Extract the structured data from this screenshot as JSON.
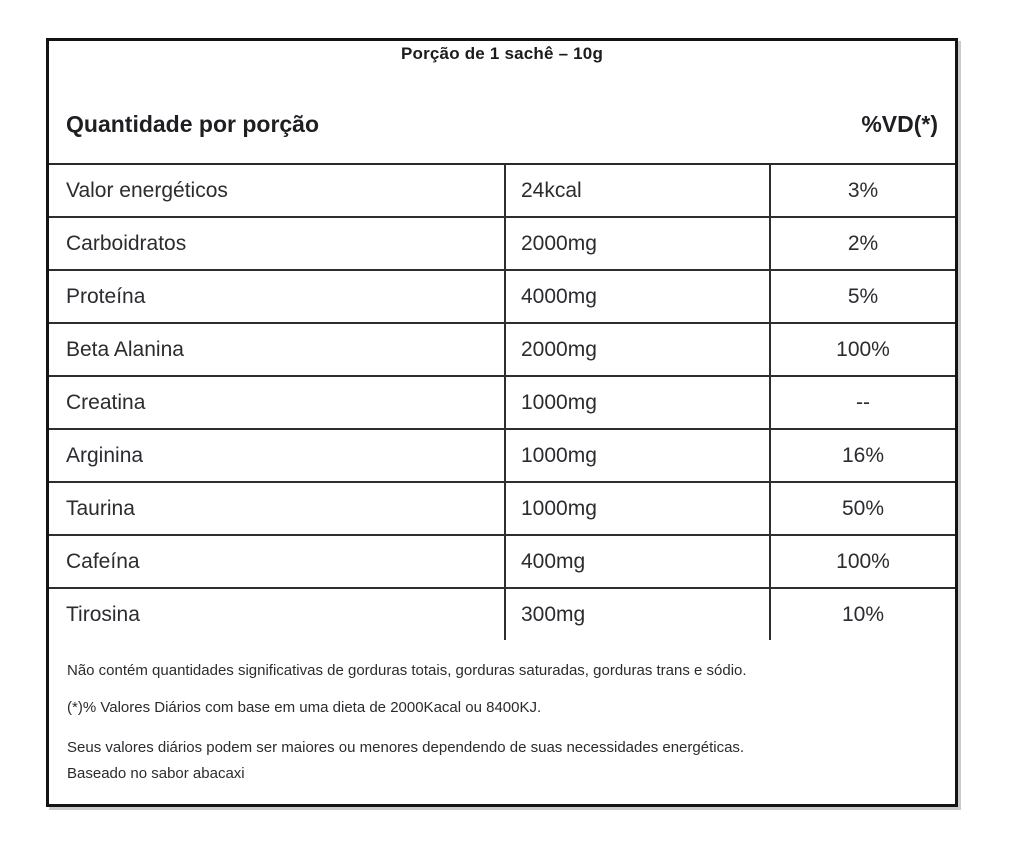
{
  "panel": {
    "title": "Porção de 1 sachê – 10g",
    "header": {
      "left": "Quantidade por porção",
      "right": "%VD(*)"
    },
    "columns": [
      "nutrient",
      "amount",
      "daily_value_percent"
    ],
    "rows": [
      {
        "name": "Valor energéticos",
        "amount": "24kcal",
        "vd": "3%"
      },
      {
        "name": "Carboidratos",
        "amount": "2000mg",
        "vd": "2%"
      },
      {
        "name": "Proteína",
        "amount": "4000mg",
        "vd": "5%"
      },
      {
        "name": "Beta Alanina",
        "amount": "2000mg",
        "vd": "100%"
      },
      {
        "name": "Creatina",
        "amount": "1000mg",
        "vd": "--"
      },
      {
        "name": "Arginina",
        "amount": "1000mg",
        "vd": "16%"
      },
      {
        "name": "Taurina",
        "amount": "1000mg",
        "vd": "50%"
      },
      {
        "name": "Cafeína",
        "amount": "400mg",
        "vd": "100%"
      },
      {
        "name": "Tirosina",
        "amount": "300mg",
        "vd": "10%"
      }
    ],
    "footnotes": [
      "Não contém quantidades significativas de gorduras totais, gorduras saturadas, gorduras trans e sódio.",
      "(*)% Valores Diários com base em uma dieta de 2000Kacal ou 8400KJ.",
      "Seus valores diários podem ser maiores ou menores dependendo de suas necessidades energéticas.",
      "Baseado no sabor abacaxi"
    ],
    "colors": {
      "outer_border": "#131313",
      "inner_border": "#2e2e2e",
      "text": "#2b2b30",
      "background": "#ffffff"
    }
  }
}
